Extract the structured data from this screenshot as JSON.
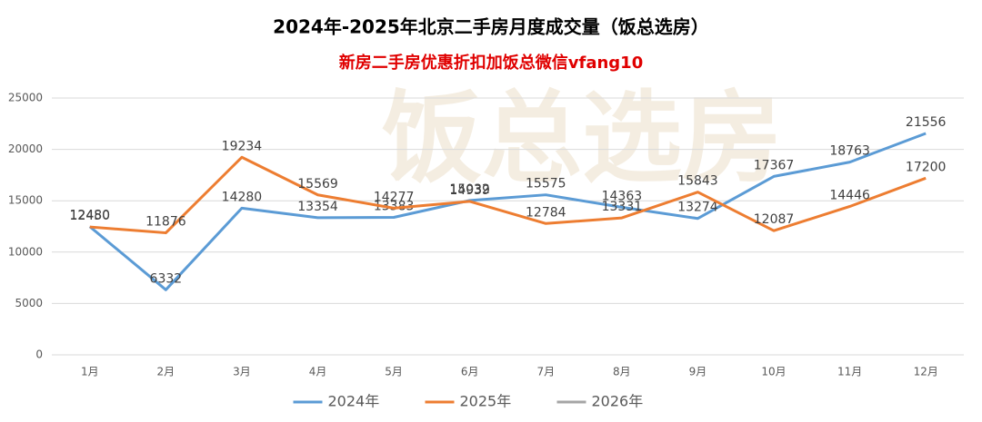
{
  "chart_data": {
    "type": "line",
    "title": "2024年-2025年北京二手房月度成交量（饭总选房）",
    "subtitle": "新房二手房优惠折扣加饭总微信vfang10",
    "watermark": "饭总选房",
    "categories": [
      "1月",
      "2月",
      "3月",
      "4月",
      "5月",
      "6月",
      "7月",
      "8月",
      "9月",
      "10月",
      "11月",
      "12月"
    ],
    "series": [
      {
        "name": "2024年",
        "color": "#5b9bd5",
        "values": [
          12480,
          6332,
          14280,
          13354,
          13383,
          15032,
          15575,
          14363,
          13274,
          17367,
          18763,
          21556
        ]
      },
      {
        "name": "2025年",
        "color": "#ed7d31",
        "values": [
          12450,
          11876,
          19234,
          15569,
          14277,
          14939,
          12784,
          13331,
          15843,
          12087,
          14446,
          17200
        ]
      },
      {
        "name": "2026年",
        "color": "#a5a5a5",
        "values": [
          null,
          null,
          null,
          null,
          null,
          null,
          null,
          null,
          null,
          null,
          null,
          null
        ]
      }
    ],
    "ylim": [
      0,
      25000
    ],
    "yticks": [
      0,
      5000,
      10000,
      15000,
      20000,
      25000
    ],
    "grid": true
  }
}
